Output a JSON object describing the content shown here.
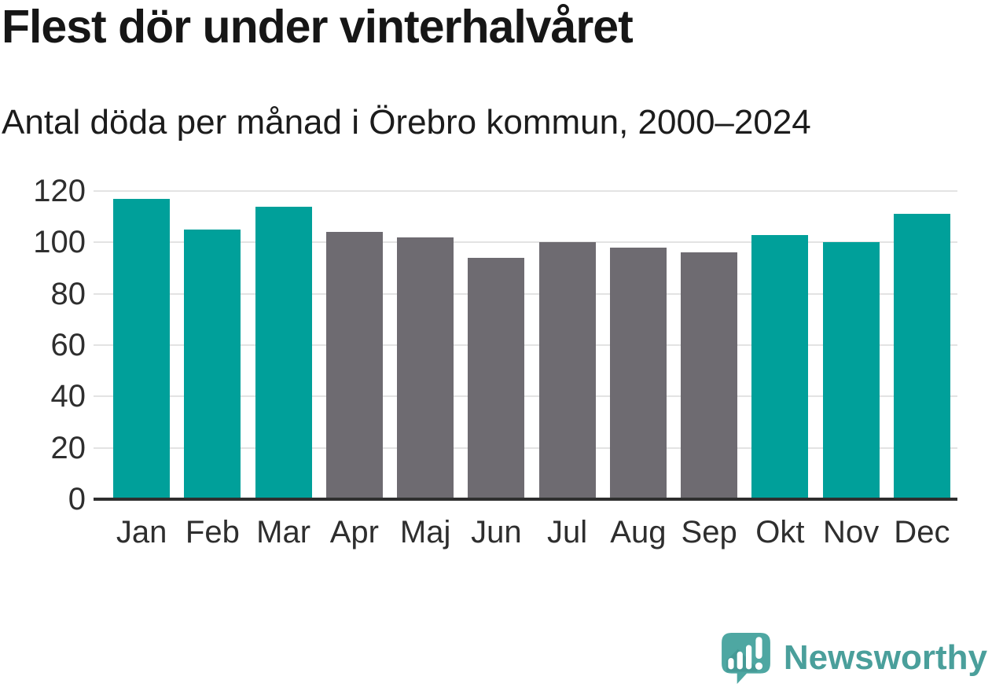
{
  "header": {
    "title": "Flest dör under vinterhalvåret",
    "subtitle": "Antal döda per månad i Örebro kommun, 2000–2024"
  },
  "chart_data": {
    "type": "bar",
    "title": "Flest dör under vinterhalvåret",
    "subtitle": "Antal döda per månad i Örebro kommun, 2000–2024",
    "categories": [
      "Jan",
      "Feb",
      "Mar",
      "Apr",
      "Maj",
      "Jun",
      "Jul",
      "Aug",
      "Sep",
      "Okt",
      "Nov",
      "Dec"
    ],
    "values": [
      117,
      105,
      114,
      104,
      102,
      94,
      100,
      98,
      96,
      103,
      100,
      111
    ],
    "bar_color_keys": [
      "winter",
      "winter",
      "winter",
      "summer",
      "summer",
      "summer",
      "summer",
      "summer",
      "summer",
      "winter",
      "winter",
      "winter"
    ],
    "colors": {
      "winter": "#00a09a",
      "summer": "#6e6b71"
    },
    "xlabel": "",
    "ylabel": "",
    "ylim": [
      0,
      120
    ],
    "yticks": [
      0,
      20,
      40,
      60,
      80,
      100,
      120
    ],
    "grid": "horizontal",
    "legend": "none"
  },
  "style": {
    "grid_color": "#e3e3e3",
    "axis_color": "#2f2f2f",
    "tick_text_color": "#2e2e2e",
    "background": "#ffffff"
  },
  "branding": {
    "logo_text": "Newsworthy",
    "logo_text_color": "#4a9f9b",
    "logo_icon": "newsworthy-speech-bubble-bar-chart-icon",
    "logo_icon_color": "#4ea7a2"
  }
}
